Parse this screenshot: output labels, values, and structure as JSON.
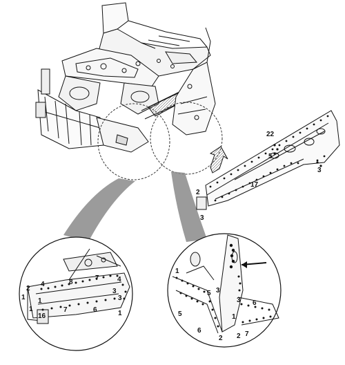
{
  "diagram": {
    "callouts_main_panel": [
      {
        "id": "c-22",
        "text": "22"
      },
      {
        "id": "c-5a",
        "text": "5"
      },
      {
        "id": "c-3a",
        "text": "3"
      },
      {
        "id": "c-17",
        "text": "17"
      },
      {
        "id": "c-2a",
        "text": "2"
      },
      {
        "id": "c-3b",
        "text": "3"
      }
    ],
    "callouts_left_detail": [
      {
        "id": "l-8",
        "text": "8"
      },
      {
        "id": "l-7a",
        "text": "7"
      },
      {
        "id": "l-4a",
        "text": "4"
      },
      {
        "id": "l-2",
        "text": "2"
      },
      {
        "id": "l-4b",
        "text": "4"
      },
      {
        "id": "l-3a",
        "text": "3"
      },
      {
        "id": "l-3b",
        "text": "3"
      },
      {
        "id": "l-1a",
        "text": "1"
      },
      {
        "id": "l-1b",
        "text": "1"
      },
      {
        "id": "l-1c",
        "text": "1"
      },
      {
        "id": "l-16",
        "text": "16"
      },
      {
        "id": "l-7b",
        "text": "7"
      },
      {
        "id": "l-6",
        "text": "6"
      },
      {
        "id": "l-1d",
        "text": "1"
      }
    ],
    "callouts_right_detail": [
      {
        "id": "r-1a",
        "text": "1"
      },
      {
        "id": "r-5a",
        "text": "5"
      },
      {
        "id": "r-3a",
        "text": "3"
      },
      {
        "id": "r-3b",
        "text": "3"
      },
      {
        "id": "r-6a",
        "text": "6"
      },
      {
        "id": "r-5b",
        "text": "5"
      },
      {
        "id": "r-1b",
        "text": "1"
      },
      {
        "id": "r-6b",
        "text": "6"
      },
      {
        "id": "r-2a",
        "text": "2"
      },
      {
        "id": "r-2b",
        "text": "2"
      },
      {
        "id": "r-7",
        "text": "7"
      }
    ],
    "colors": {
      "line": "#111111",
      "leader": "#7a7a7a",
      "arrow": "#2a2a2a",
      "background": "#ffffff"
    }
  }
}
